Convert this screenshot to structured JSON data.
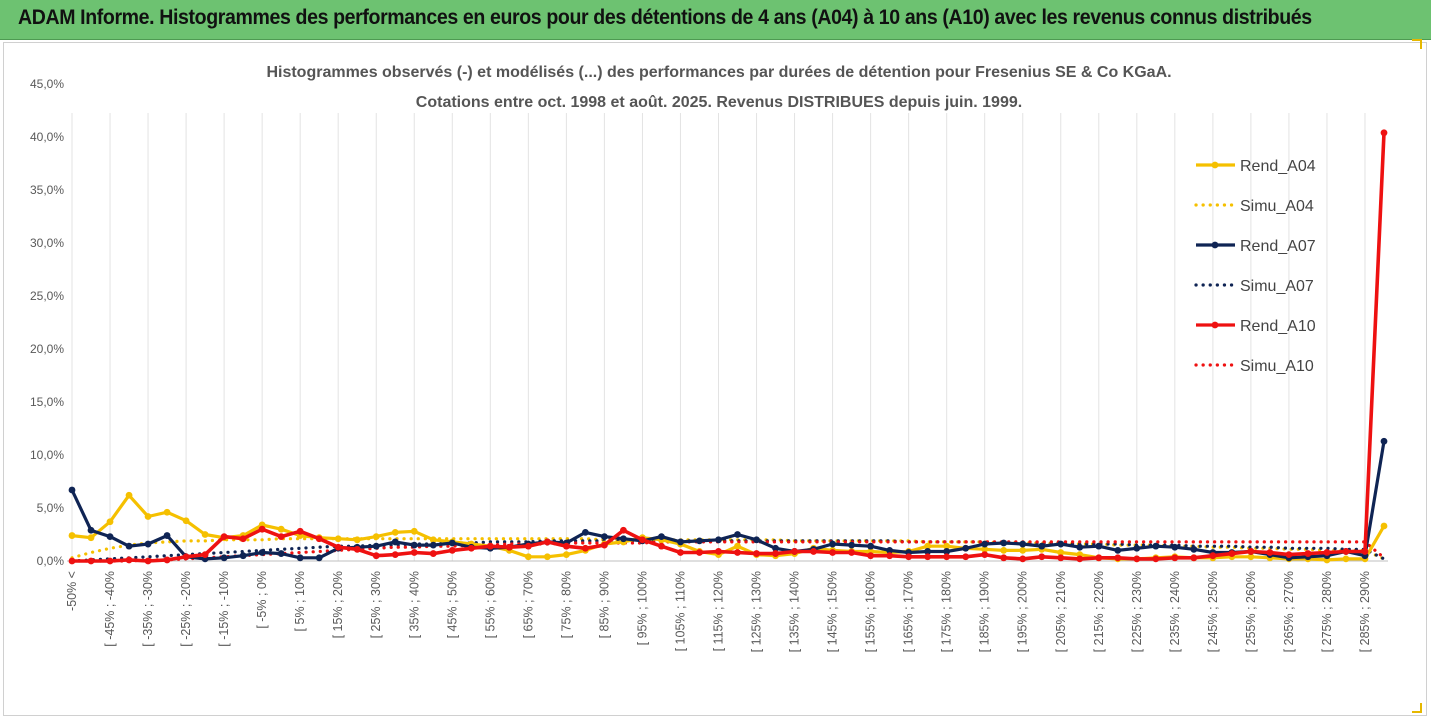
{
  "banner": {
    "title": "ADAM Informe. Histogrammes des performances en euros pour des détentions de 4 ans (A04) à 10 ans (A10) avec les revenus connus distribués"
  },
  "chart_data": {
    "type": "line",
    "title_line1": "Histogrammes observés (-) et modélisés (...) des performances par durées de détention pour Fresenius SE & Co KGaA.",
    "title_line2": "Cotations entre oct. 1998 et août. 2025. Revenus DISTRIBUES depuis juin. 1999.",
    "y_ticks": [
      "0,0%",
      "5,0%",
      "10,0%",
      "15,0%",
      "20,0%",
      "25,0%",
      "30,0%",
      "35,0%",
      "40,0%",
      "45,0%"
    ],
    "ylim": [
      0,
      45
    ],
    "grid": "vertical",
    "legend_position": "right",
    "n_points": 70,
    "x_tick_labels": [
      "-50% <",
      "[ -45% ; -40%",
      "[ -35% ; -30%",
      "[ -25% ; -20%",
      "[ -15% ; -10%",
      "[ -5% ; 0%",
      "[ 5% ; 10%",
      "[ 15% ; 20%",
      "[ 25% ; 30%",
      "[ 35% ; 40%",
      "[ 45% ; 50%",
      "[ 55% ; 60%",
      "[ 65% ; 70%",
      "[ 75% ; 80%",
      "[ 85% ; 90%",
      "[ 95% ; 100%",
      "[ 105% ; 110%",
      "[ 115% ; 120%",
      "[ 125% ; 130%",
      "[ 135% ; 140%",
      "[ 145% ; 150%",
      "[ 155% ; 160%",
      "[ 165% ; 170%",
      "[ 175% ; 180%",
      "[ 185% ; 190%",
      "[ 195% ; 200%",
      "[ 205% ; 210%",
      "[ 215% ; 220%",
      "[ 225% ; 230%",
      "[ 235% ; 240%",
      "[ 245% ; 250%",
      "[ 255% ; 260%",
      "[ 265% ; 270%",
      "[ 275% ; 280%",
      "[ 285% ; 290%"
    ],
    "series": [
      {
        "name": "Rend_A04",
        "style": "solid",
        "color": "#f5c000",
        "markers": true,
        "values": [
          2.4,
          2.2,
          3.7,
          6.2,
          4.2,
          4.6,
          3.8,
          2.5,
          2.2,
          2.4,
          3.4,
          3.0,
          2.4,
          2.2,
          2.1,
          2.0,
          2.3,
          2.7,
          2.8,
          2.0,
          1.8,
          1.6,
          1.4,
          1.0,
          0.4,
          0.4,
          0.6,
          1.0,
          1.6,
          1.8,
          2.2,
          2.0,
          1.6,
          0.9,
          0.6,
          1.4,
          0.6,
          0.5,
          0.7,
          1.2,
          1.0,
          0.9,
          0.9,
          0.8,
          0.9,
          1.4,
          1.4,
          1.2,
          1.1,
          1.0,
          1.0,
          1.1,
          0.8,
          0.6,
          0.3,
          0.2,
          0.2,
          0.3,
          0.4,
          0.3,
          0.3,
          0.4,
          0.4,
          0.3,
          0.2,
          0.2,
          0.1,
          0.2,
          0.2,
          3.3
        ]
      },
      {
        "name": "Simu_A04",
        "style": "dotted",
        "color": "#f5c000",
        "markers": false,
        "values": [
          0.3,
          0.8,
          1.2,
          1.5,
          1.7,
          1.8,
          1.9,
          1.9,
          2.0,
          2.0,
          2.0,
          2.1,
          2.1,
          2.1,
          2.1,
          2.1,
          2.1,
          2.1,
          2.1,
          2.1,
          2.1,
          2.1,
          2.1,
          2.1,
          2.1,
          2.1,
          2.1,
          2.1,
          2.0,
          2.0,
          2.0,
          2.0,
          2.0,
          2.0,
          2.0,
          2.0,
          2.0,
          2.0,
          1.9,
          1.9,
          1.9,
          1.9,
          1.9,
          1.9,
          1.9,
          1.8,
          1.8,
          1.8,
          1.8,
          1.7,
          1.7,
          1.7,
          1.6,
          1.6,
          1.6,
          1.5,
          1.5,
          1.5,
          1.4,
          1.4,
          1.3,
          1.3,
          1.2,
          1.2,
          1.1,
          1.1,
          1.0,
          1.0,
          1.0,
          0.2
        ]
      },
      {
        "name": "Rend_A07",
        "style": "solid",
        "color": "#0f2454",
        "markers": true,
        "values": [
          6.7,
          2.9,
          2.3,
          1.4,
          1.6,
          2.4,
          0.4,
          0.2,
          0.3,
          0.5,
          0.8,
          0.7,
          0.3,
          0.3,
          1.2,
          1.3,
          1.4,
          1.8,
          1.5,
          1.5,
          1.7,
          1.3,
          1.2,
          1.3,
          1.6,
          1.8,
          1.7,
          2.7,
          2.3,
          2.1,
          1.9,
          2.3,
          1.8,
          1.9,
          2.0,
          2.5,
          2.0,
          1.2,
          0.9,
          1.1,
          1.6,
          1.5,
          1.4,
          1.0,
          0.8,
          0.9,
          0.9,
          1.2,
          1.6,
          1.7,
          1.6,
          1.4,
          1.6,
          1.3,
          1.4,
          1.0,
          1.2,
          1.4,
          1.3,
          1.1,
          0.8,
          0.8,
          0.9,
          0.6,
          0.3,
          0.4,
          0.5,
          0.9,
          0.5,
          11.3
        ]
      },
      {
        "name": "Simu_A07",
        "style": "dotted",
        "color": "#0f2454",
        "markers": false,
        "values": [
          0.0,
          0.1,
          0.2,
          0.3,
          0.4,
          0.5,
          0.6,
          0.7,
          0.8,
          0.9,
          1.0,
          1.1,
          1.2,
          1.3,
          1.4,
          1.4,
          1.5,
          1.5,
          1.6,
          1.6,
          1.7,
          1.7,
          1.8,
          1.8,
          1.8,
          1.9,
          1.9,
          1.9,
          1.9,
          1.9,
          1.9,
          1.9,
          1.9,
          1.9,
          1.9,
          1.9,
          1.9,
          1.9,
          1.9,
          1.9,
          1.9,
          1.9,
          1.9,
          1.9,
          1.8,
          1.8,
          1.8,
          1.8,
          1.8,
          1.7,
          1.7,
          1.7,
          1.7,
          1.6,
          1.6,
          1.6,
          1.5,
          1.5,
          1.5,
          1.4,
          1.4,
          1.4,
          1.3,
          1.3,
          1.2,
          1.2,
          1.2,
          1.1,
          1.1,
          0.2
        ]
      },
      {
        "name": "Rend_A10",
        "style": "solid",
        "color": "#ee1111",
        "markers": true,
        "values": [
          0.0,
          0.0,
          0.0,
          0.1,
          0.0,
          0.1,
          0.4,
          0.6,
          2.3,
          2.1,
          3.0,
          2.3,
          2.8,
          2.1,
          1.3,
          1.1,
          0.5,
          0.6,
          0.8,
          0.7,
          1.0,
          1.2,
          1.4,
          1.3,
          1.4,
          1.8,
          1.4,
          1.2,
          1.5,
          2.9,
          2.0,
          1.4,
          0.8,
          0.8,
          0.9,
          0.8,
          0.7,
          0.7,
          0.9,
          0.9,
          0.8,
          0.8,
          0.5,
          0.5,
          0.4,
          0.4,
          0.4,
          0.4,
          0.6,
          0.3,
          0.2,
          0.4,
          0.3,
          0.2,
          0.3,
          0.3,
          0.2,
          0.2,
          0.3,
          0.3,
          0.5,
          0.7,
          0.9,
          0.8,
          0.6,
          0.7,
          0.8,
          0.9,
          0.9,
          40.4
        ]
      },
      {
        "name": "Simu_A10",
        "style": "dotted",
        "color": "#ee1111",
        "markers": false,
        "values": [
          0.0,
          0.0,
          0.0,
          0.0,
          0.1,
          0.1,
          0.2,
          0.3,
          0.4,
          0.5,
          0.6,
          0.7,
          0.8,
          0.9,
          1.0,
          1.1,
          1.2,
          1.3,
          1.3,
          1.4,
          1.4,
          1.5,
          1.5,
          1.6,
          1.6,
          1.6,
          1.7,
          1.7,
          1.7,
          1.7,
          1.7,
          1.8,
          1.8,
          1.8,
          1.8,
          1.8,
          1.8,
          1.8,
          1.8,
          1.8,
          1.8,
          1.8,
          1.8,
          1.8,
          1.8,
          1.8,
          1.8,
          1.8,
          1.8,
          1.8,
          1.8,
          1.8,
          1.8,
          1.8,
          1.8,
          1.8,
          1.8,
          1.8,
          1.8,
          1.8,
          1.8,
          1.8,
          1.8,
          1.8,
          1.8,
          1.8,
          1.8,
          1.8,
          1.8,
          0.3
        ]
      }
    ]
  }
}
